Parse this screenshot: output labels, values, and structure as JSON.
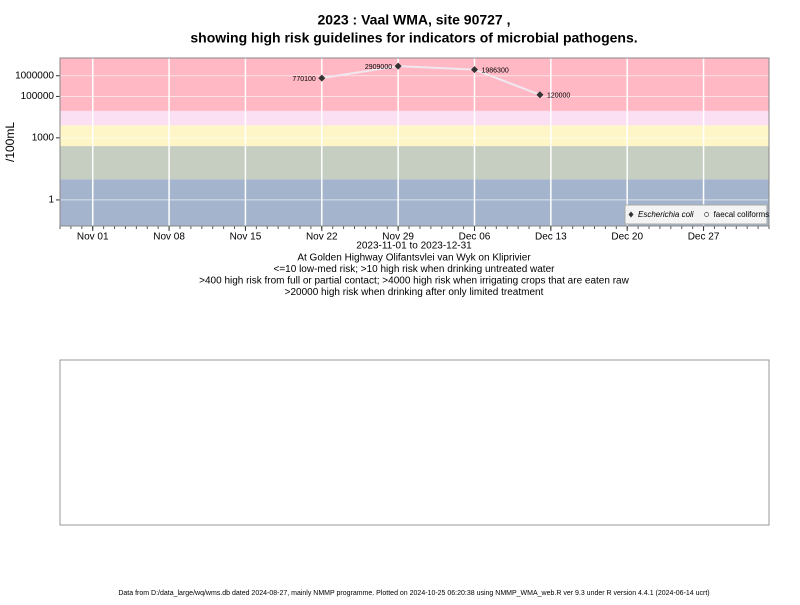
{
  "chart_data": {
    "type": "line",
    "title": "2023 : Vaal WMA, site 90727 ,",
    "subtitle": "showing high risk guidelines for indicators of microbial pathogens.",
    "ylabel": "/100mL",
    "xlabel": "2023-11-01 to 2023-12-31",
    "notes": [
      "At Golden Highway Olifantsvlei van Wyk on Kliprivier",
      "<=10 low-med risk; >10 high risk when drinking untreated water",
      ">400 high risk from full or partial contact; >4000 high risk when irrigating crops that are eaten raw",
      ">20000 high risk when drinking after only limited treatment"
    ],
    "footer": "Data from D:/data_large/wq/wms.db dated 2024-08-27, mainly NMMP programme. Plotted on 2024-10-25 06:20:38 using NMMP_WMA_web.R ver 9.3 under R version 4.4.1 (2024-06-14 ucrt)",
    "x": [
      "2023-11-22",
      "2023-11-29",
      "2023-12-06",
      "2023-12-12"
    ],
    "series": [
      {
        "name": "Escherichia coli",
        "color": "#333333",
        "line_color": "#f0e8ee",
        "values": [
          770100,
          2909000,
          1986300,
          120000
        ]
      },
      {
        "name": "faecal coliforms",
        "color": "#ffffff",
        "values": [
          null,
          null,
          null,
          null
        ]
      }
    ],
    "xlim": [
      "2023-10-29",
      "2024-01-02"
    ],
    "xticks": [
      {
        "value": "2023-11-01",
        "label": "Nov 01"
      },
      {
        "value": "2023-11-08",
        "label": "Nov 08"
      },
      {
        "value": "2023-11-15",
        "label": "Nov 15"
      },
      {
        "value": "2023-11-22",
        "label": "Nov 22"
      },
      {
        "value": "2023-11-29",
        "label": "Nov 29"
      },
      {
        "value": "2023-12-06",
        "label": "Dec 06"
      },
      {
        "value": "2023-12-13",
        "label": "Dec 13"
      },
      {
        "value": "2023-12-20",
        "label": "Dec 20"
      },
      {
        "value": "2023-12-27",
        "label": "Dec 27"
      }
    ],
    "ylim": [
      0.055,
      7200000
    ],
    "yticks": [
      1,
      1000,
      100000,
      1000000
    ],
    "log_y": true,
    "grid": true,
    "legend": "bottom-right",
    "bands": [
      {
        "from": 0.055,
        "to": 10,
        "color": "#a4b4cc"
      },
      {
        "from": 10,
        "to": 400,
        "color": "#c5cec0"
      },
      {
        "from": 400,
        "to": 4000,
        "color": "#fff6c8"
      },
      {
        "from": 4000,
        "to": 20000,
        "color": "#fbe0f4"
      },
      {
        "from": 20000,
        "to": 7200000,
        "color": "#ffb8c4"
      }
    ]
  }
}
